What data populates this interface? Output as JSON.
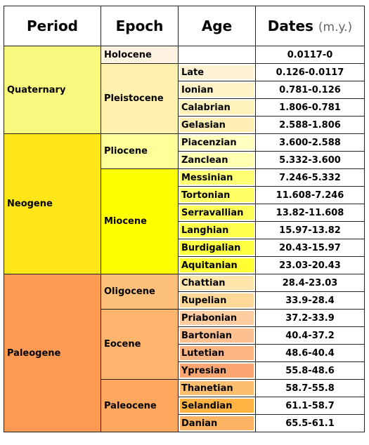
{
  "header": {
    "period": "Period",
    "epoch": "Epoch",
    "age": "Age",
    "dates": "Dates",
    "dates_unit": "(m.y.)"
  },
  "periods": [
    {
      "name": "Quaternary",
      "color": "#f9f97f",
      "epochs": [
        {
          "name": "Holocene",
          "color": "#fef2e0",
          "dates": "0.0117-0",
          "ages": []
        },
        {
          "name": "Pleistocene",
          "color": "#fff2ae",
          "ages": [
            {
              "name": "Late",
              "color": "#fff2d3",
              "dates": "0.126-0.0117"
            },
            {
              "name": "Ionian",
              "color": "#fff2c7",
              "dates": "0.781-0.126"
            },
            {
              "name": "Calabrian",
              "color": "#fff2ba",
              "dates": "1.806-0.781"
            },
            {
              "name": "Gelasian",
              "color": "#ffedb3",
              "dates": "2.588-1.806"
            }
          ]
        }
      ]
    },
    {
      "name": "Neogene",
      "color": "#ffe619",
      "epochs": [
        {
          "name": "Pliocene",
          "color": "#ffff99",
          "ages": [
            {
              "name": "Piacenzian",
              "color": "#ffffbf",
              "dates": "3.600-2.588"
            },
            {
              "name": "Zanclean",
              "color": "#ffffb3",
              "dates": "5.332-3.600"
            }
          ]
        },
        {
          "name": "Miocene",
          "color": "#ffff00",
          "ages": [
            {
              "name": "Messinian",
              "color": "#ffff73",
              "dates": "7.246-5.332"
            },
            {
              "name": "Tortonian",
              "color": "#ffff66",
              "dates": "11.608-7.246"
            },
            {
              "name": "Serravallian",
              "color": "#ffff59",
              "dates": "13.82-11.608"
            },
            {
              "name": "Langhian",
              "color": "#ffff4d",
              "dates": "15.97-13.82"
            },
            {
              "name": "Burdigalian",
              "color": "#ffff41",
              "dates": "20.43-15.97"
            },
            {
              "name": "Aquitanian",
              "color": "#ffff33",
              "dates": "23.03-20.43"
            }
          ]
        }
      ]
    },
    {
      "name": "Paleogene",
      "color": "#fd9a52",
      "epochs": [
        {
          "name": "Oligocene",
          "color": "#fdc07a",
          "ages": [
            {
              "name": "Chattian",
              "color": "#fee6aa",
              "dates": "28.4-23.03"
            },
            {
              "name": "Rupelian",
              "color": "#fed99a",
              "dates": "33.9-28.4"
            }
          ]
        },
        {
          "name": "Eocene",
          "color": "#fdb46c",
          "ages": [
            {
              "name": "Priabonian",
              "color": "#fdcda1",
              "dates": "37.2-33.9"
            },
            {
              "name": "Bartonian",
              "color": "#fdc091",
              "dates": "40.4-37.2"
            },
            {
              "name": "Lutetian",
              "color": "#fcb482",
              "dates": "48.6-40.4"
            },
            {
              "name": "Ypresian",
              "color": "#fca773",
              "dates": "55.8-48.6"
            }
          ]
        },
        {
          "name": "Paleocene",
          "color": "#fda75f",
          "ages": [
            {
              "name": "Thanetian",
              "color": "#fdbf6f",
              "dates": "58.7-55.8"
            },
            {
              "name": "Selandian",
              "color": "#feb342",
              "dates": "61.1-58.7"
            },
            {
              "name": "Danian",
              "color": "#fdb462",
              "dates": "65.5-61.1"
            }
          ]
        }
      ]
    }
  ]
}
